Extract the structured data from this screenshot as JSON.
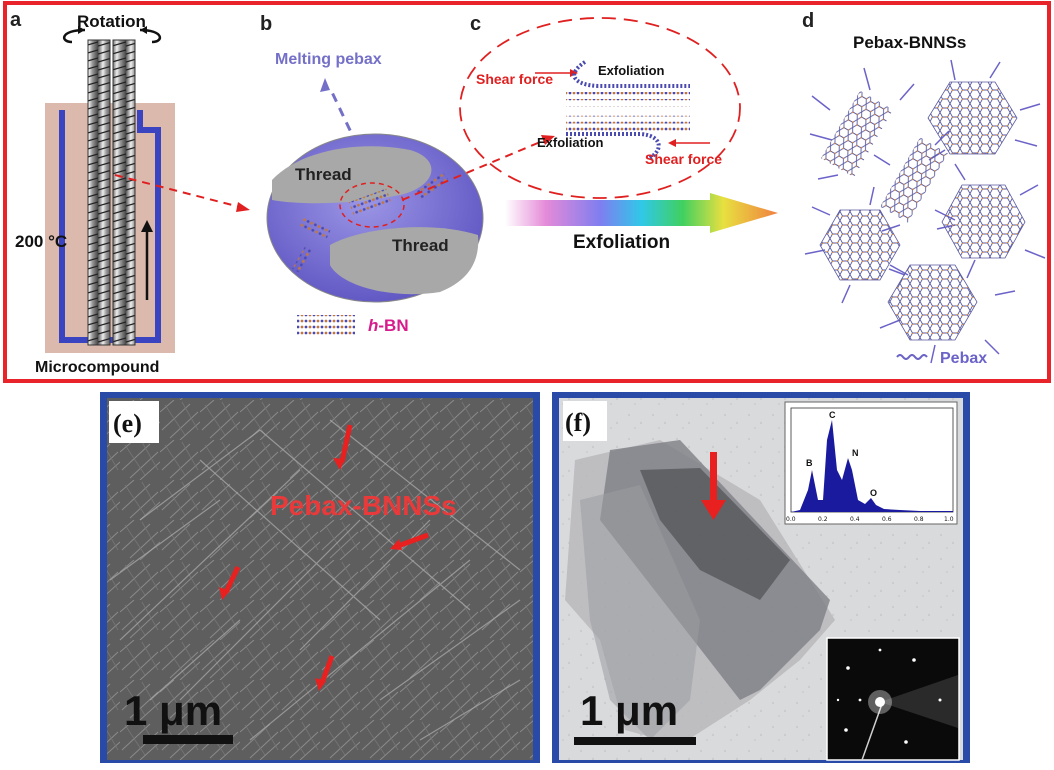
{
  "top_panel": {
    "a": {
      "letter": "a",
      "rotation": "Rotation",
      "temperature": "200 °C",
      "caption": "Microcompound"
    },
    "b": {
      "letter": "b",
      "melting": "Melting pebax",
      "thread_top": "Thread",
      "thread_bottom": "Thread",
      "hbn_label_prefix": "h",
      "hbn_label_suffix": "-BN"
    },
    "c": {
      "letter": "c",
      "shear_top": "Shear force",
      "exfoliation_top": "Exfoliation",
      "exfoliation_bottom": "Exfoliation",
      "shear_bottom": "Shear force"
    },
    "arrow_label": "Exfoliation",
    "d": {
      "letter": "d",
      "title": "Pebax-BNNSs",
      "legend": "Pebax"
    }
  },
  "panel_e": {
    "letter": "(e)",
    "label": "Pebax-BNNSs",
    "scale": "1 μm"
  },
  "panel_f": {
    "letter": "(f)",
    "scale": "1 μm",
    "spectrum": {
      "peaks": [
        "B",
        "C",
        "N",
        "O"
      ],
      "ticks": [
        "0.0",
        "0.2",
        "0.4",
        "0.6",
        "0.8",
        "1.0"
      ]
    }
  },
  "colors": {
    "frame_red": "#e8232a",
    "frame_blue": "#2a4aa8",
    "pebax_purple": "#6b63c8",
    "arrow_red": "#e02020",
    "hbn_magenta": "#d81b8c",
    "spectrum_blue": "#1a1a9e"
  }
}
